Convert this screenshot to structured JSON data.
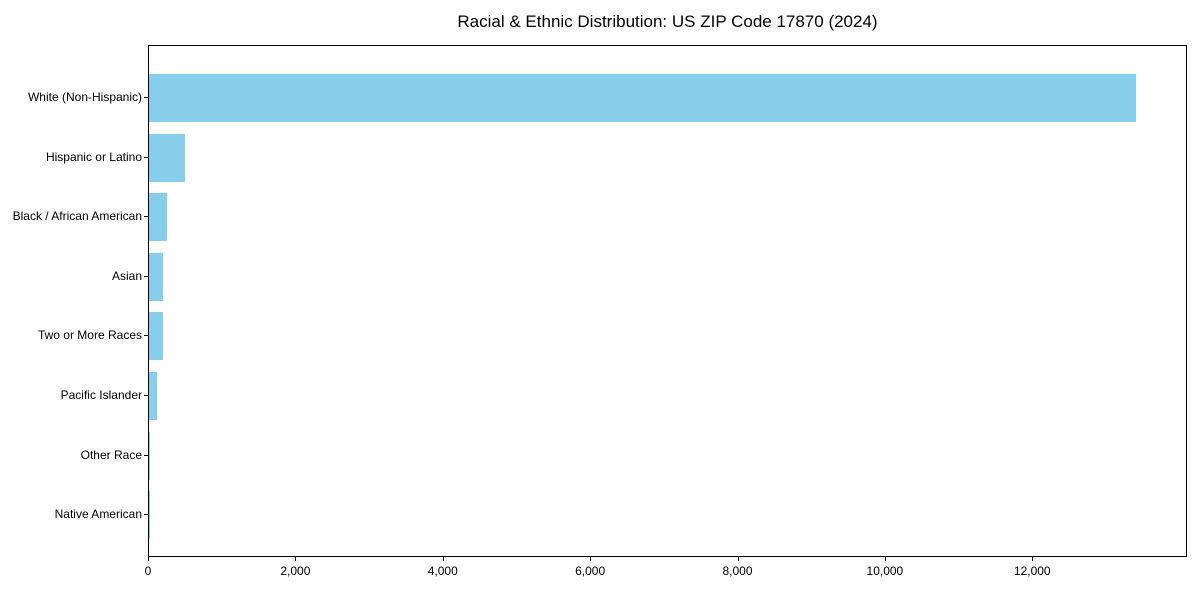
{
  "title": "Racial & Ethnic Distribution: US ZIP Code 17870 (2024)",
  "colors": {
    "bar": "#87CEEB",
    "axis": "#000000",
    "text": "#000000",
    "background": "#ffffff"
  },
  "chart_data": {
    "type": "bar",
    "orientation": "horizontal",
    "title": "Racial & Ethnic Distribution: US ZIP Code 17870 (2024)",
    "categories": [
      "White (Non-Hispanic)",
      "Hispanic or Latino",
      "Black / African American",
      "Asian",
      "Two or More Races",
      "Pacific Islander",
      "Other Race",
      "Native American"
    ],
    "values": [
      13400,
      490,
      240,
      190,
      185,
      110,
      15,
      3
    ],
    "xlabel": "",
    "ylabel": "",
    "xlim": [
      0,
      14100
    ],
    "xticks": [
      0,
      2000,
      4000,
      6000,
      8000,
      10000,
      12000
    ],
    "xtick_labels": [
      "0",
      "2,000",
      "4,000",
      "6,000",
      "8,000",
      "10,000",
      "12,000"
    ],
    "bar_color": "#87CEEB",
    "grid": false,
    "legend": null
  }
}
